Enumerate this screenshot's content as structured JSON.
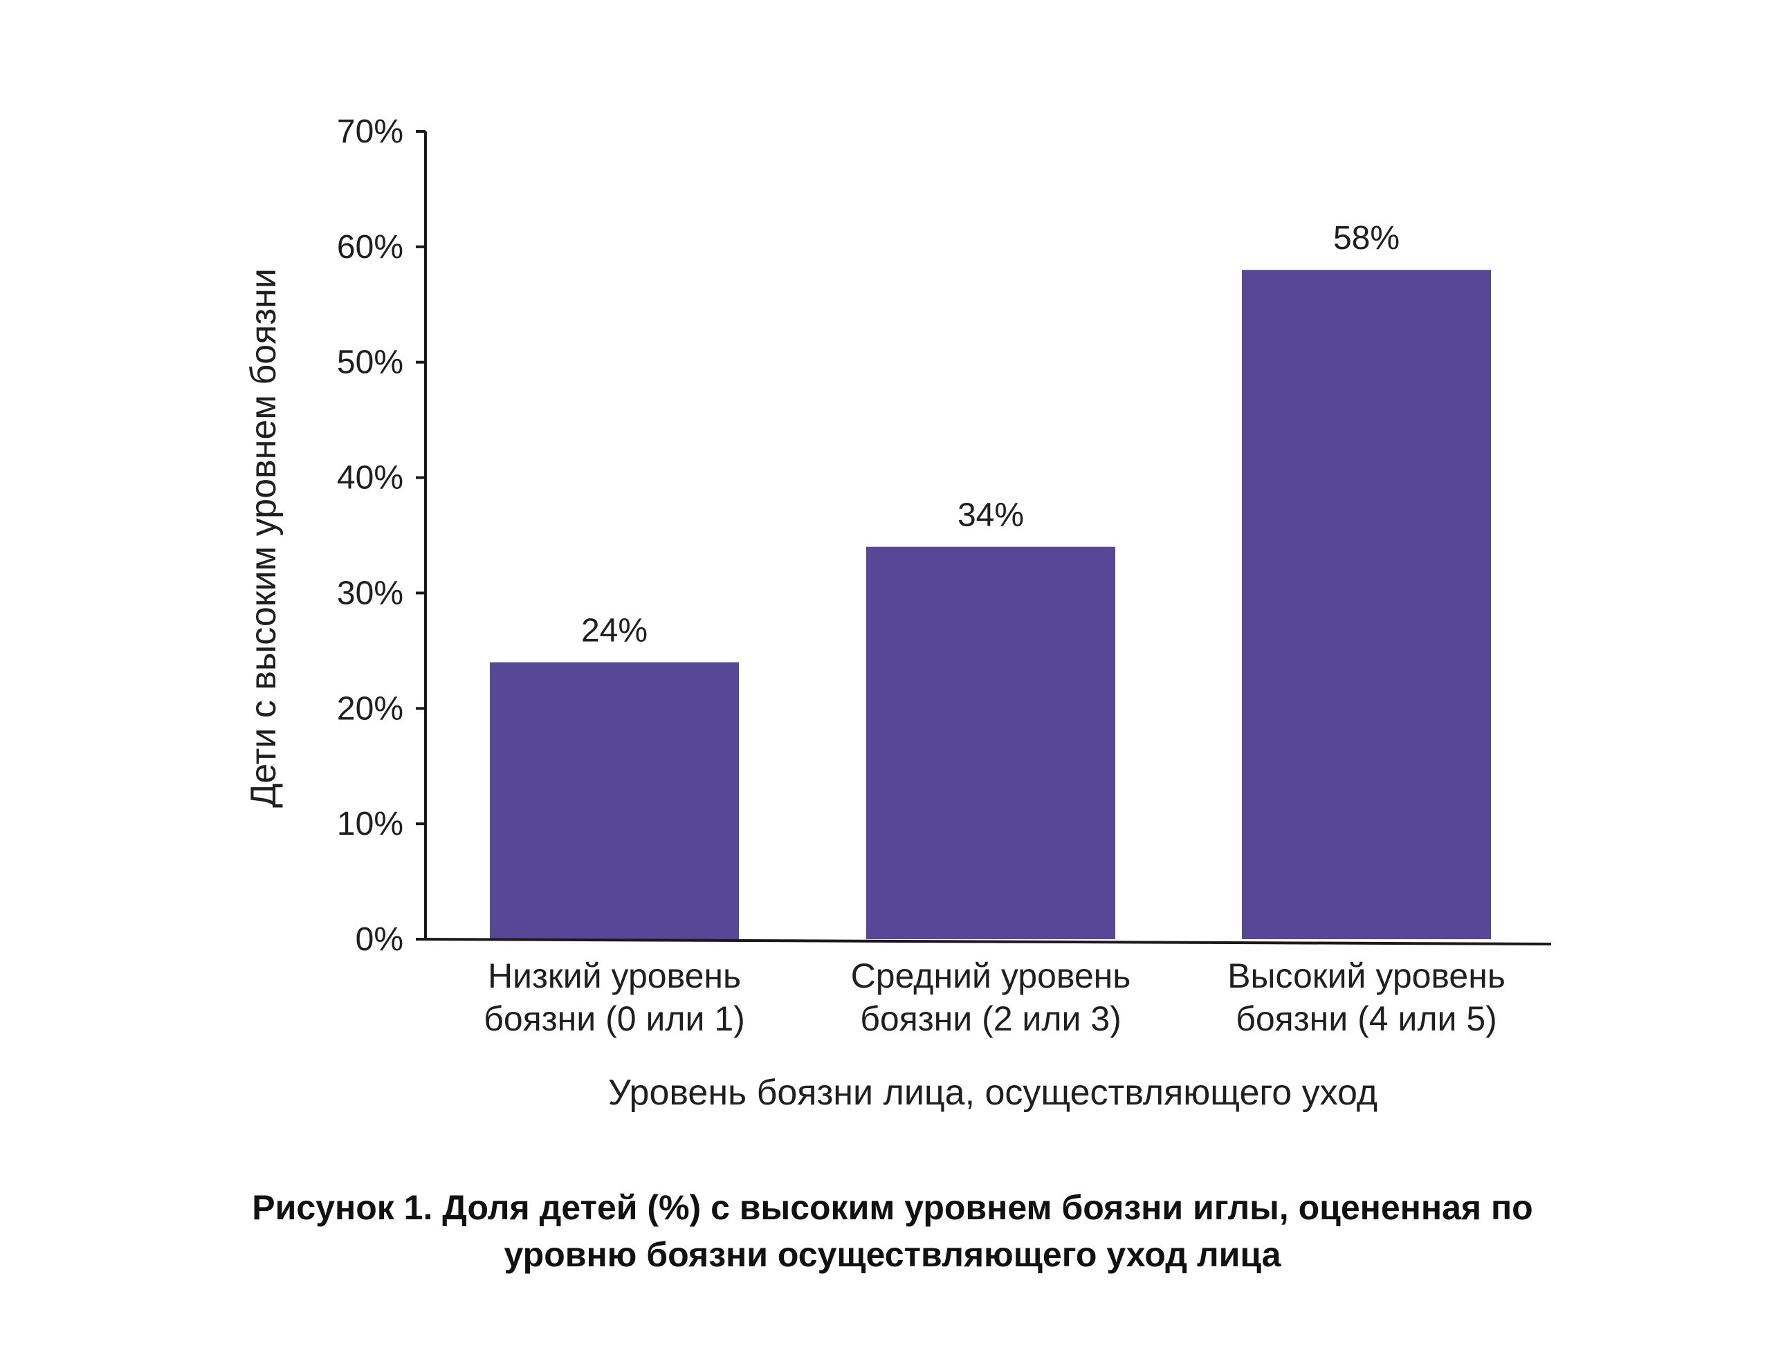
{
  "chart_data": {
    "type": "bar",
    "categories": [
      [
        "Низкий уровень",
        "боязни (0 или 1)"
      ],
      [
        "Средний уровень",
        "боязни (2 или 3)"
      ],
      [
        "Высокий уровень",
        "боязни (4 или 5)"
      ]
    ],
    "values": [
      24,
      34,
      58
    ],
    "data_labels": [
      "24%",
      "34%",
      "58%"
    ],
    "xlabel": "Уровень боязни лица, осуществляющего уход",
    "ylabel": "Дети с высоким уровнем боязни",
    "ylim": [
      0,
      70
    ],
    "yticks": [
      "0%",
      "10%",
      "20%",
      "30%",
      "40%",
      "50%",
      "60%",
      "70%"
    ],
    "ytick_values": [
      0,
      10,
      20,
      30,
      40,
      50,
      60,
      70
    ],
    "grid": false,
    "bar_color": "#574897"
  },
  "caption": {
    "line1": "Рисунок 1. Доля детей (%) с высоким уровнем боязни иглы, оцененная по",
    "line2": "уровню боязни осуществляющего уход лица"
  }
}
